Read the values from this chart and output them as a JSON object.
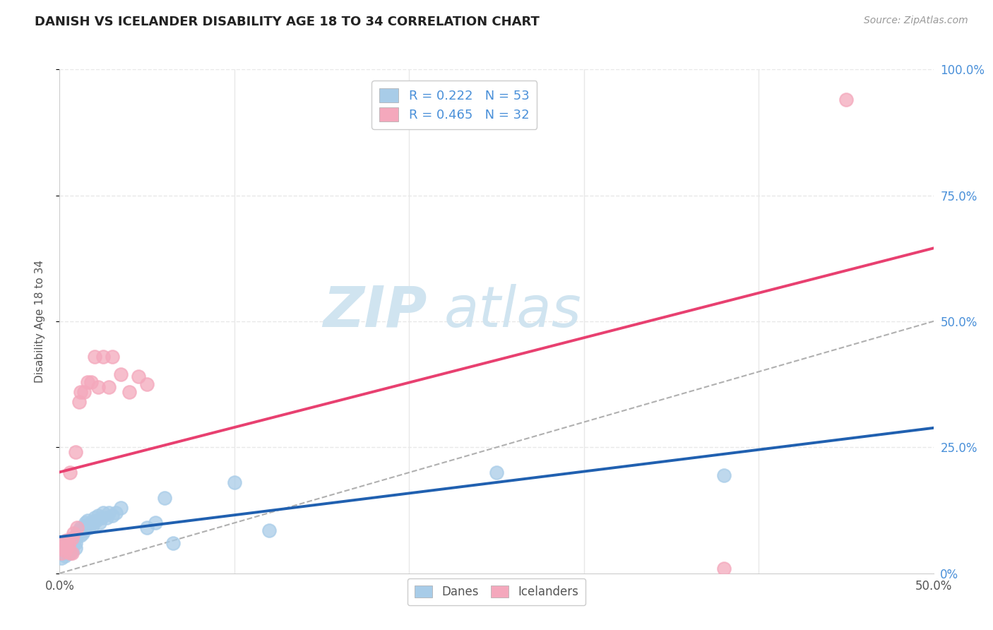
{
  "title": "DANISH VS ICELANDER DISABILITY AGE 18 TO 34 CORRELATION CHART",
  "source": "Source: ZipAtlas.com",
  "ylabel": "Disability Age 18 to 34",
  "xlim": [
    0.0,
    0.5
  ],
  "ylim": [
    0.0,
    1.0
  ],
  "danes_R": "0.222",
  "danes_N": "53",
  "icelanders_R": "0.465",
  "icelanders_N": "32",
  "danes_color": "#a8cce8",
  "icelanders_color": "#f4a8bc",
  "trendline_danes_color": "#2060b0",
  "trendline_icelanders_color": "#e84070",
  "danes_x": [
    0.001,
    0.002,
    0.002,
    0.003,
    0.003,
    0.004,
    0.004,
    0.004,
    0.005,
    0.005,
    0.006,
    0.006,
    0.006,
    0.007,
    0.007,
    0.007,
    0.008,
    0.008,
    0.009,
    0.009,
    0.009,
    0.01,
    0.01,
    0.011,
    0.012,
    0.012,
    0.013,
    0.014,
    0.015,
    0.015,
    0.016,
    0.017,
    0.018,
    0.019,
    0.02,
    0.021,
    0.022,
    0.023,
    0.024,
    0.025,
    0.027,
    0.028,
    0.03,
    0.032,
    0.035,
    0.05,
    0.055,
    0.06,
    0.065,
    0.1,
    0.12,
    0.25,
    0.38
  ],
  "danes_y": [
    0.03,
    0.04,
    0.05,
    0.035,
    0.055,
    0.04,
    0.05,
    0.06,
    0.045,
    0.055,
    0.04,
    0.05,
    0.06,
    0.045,
    0.055,
    0.065,
    0.06,
    0.07,
    0.05,
    0.06,
    0.07,
    0.075,
    0.08,
    0.085,
    0.075,
    0.09,
    0.08,
    0.085,
    0.095,
    0.1,
    0.105,
    0.09,
    0.1,
    0.095,
    0.11,
    0.105,
    0.115,
    0.1,
    0.11,
    0.12,
    0.11,
    0.12,
    0.115,
    0.12,
    0.13,
    0.09,
    0.1,
    0.15,
    0.06,
    0.18,
    0.085,
    0.2,
    0.195
  ],
  "icelanders_x": [
    0.001,
    0.002,
    0.002,
    0.003,
    0.003,
    0.004,
    0.004,
    0.005,
    0.005,
    0.006,
    0.006,
    0.007,
    0.007,
    0.008,
    0.009,
    0.01,
    0.011,
    0.012,
    0.014,
    0.016,
    0.018,
    0.02,
    0.022,
    0.025,
    0.028,
    0.03,
    0.035,
    0.04,
    0.045,
    0.05,
    0.38,
    0.45
  ],
  "icelanders_y": [
    0.04,
    0.05,
    0.06,
    0.045,
    0.055,
    0.05,
    0.065,
    0.055,
    0.06,
    0.04,
    0.2,
    0.04,
    0.07,
    0.08,
    0.24,
    0.09,
    0.34,
    0.36,
    0.36,
    0.38,
    0.38,
    0.43,
    0.37,
    0.43,
    0.37,
    0.43,
    0.395,
    0.36,
    0.39,
    0.375,
    0.01,
    0.94
  ],
  "watermark_line1": "ZIP",
  "watermark_line2": "atlas",
  "watermark_color": "#d0e4f0",
  "background_color": "#ffffff",
  "grid_color": "#e8e8e8",
  "right_ytick_values": [
    0.0,
    0.25,
    0.5,
    0.75,
    1.0
  ],
  "right_ytick_labels": [
    "0%",
    "25.0%",
    "50.0%",
    "75.0%",
    "100.0%"
  ],
  "xtick_values": [
    0.0,
    0.5
  ],
  "xtick_labels": [
    "0.0%",
    "50.0%"
  ]
}
